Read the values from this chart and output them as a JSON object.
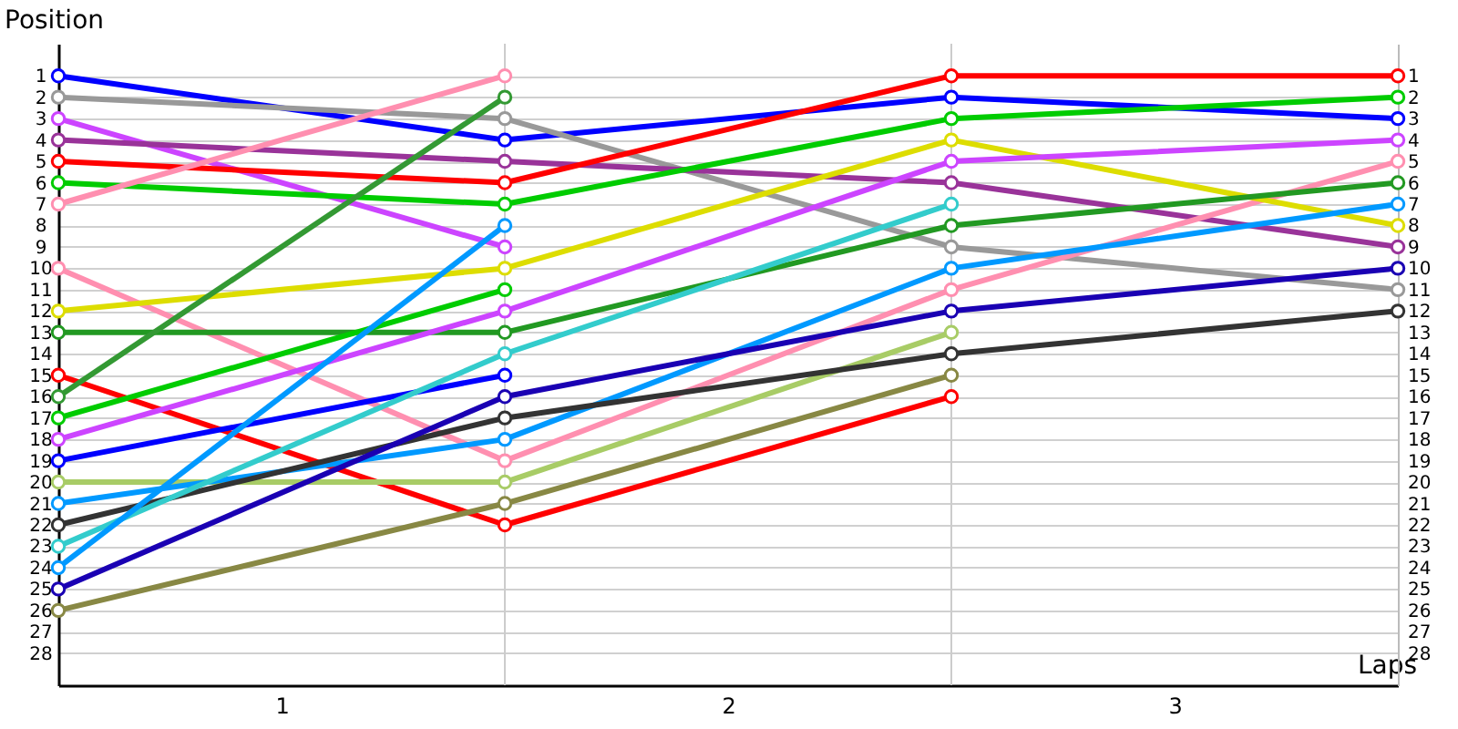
{
  "chart_data": {
    "type": "line",
    "xlabel": "Laps",
    "ylabel": "Position",
    "x": [
      0,
      1,
      2,
      3
    ],
    "xlim": [
      0,
      3
    ],
    "xticks": [
      {
        "value": 0.5,
        "label": "1"
      },
      {
        "value": 1.5,
        "label": "2"
      },
      {
        "value": 2.5,
        "label": "3"
      }
    ],
    "ylim": [
      29.5,
      -0.5
    ],
    "yticks": [
      1,
      2,
      3,
      4,
      5,
      6,
      7,
      8,
      9,
      10,
      11,
      12,
      13,
      14,
      15,
      16,
      17,
      18,
      19,
      20,
      21,
      22,
      23,
      24,
      25,
      26,
      27,
      28
    ],
    "y2lim": [
      29.5,
      -0.5
    ],
    "y2ticks": [
      1,
      2,
      3,
      4,
      5,
      6,
      7,
      8,
      9,
      10,
      11,
      12,
      13,
      14,
      15,
      16,
      17,
      18,
      19,
      20,
      21,
      22,
      23,
      24,
      25,
      26,
      27,
      28
    ],
    "grid": "y",
    "marker": "circle",
    "legend": false,
    "ref_lines": [
      {
        "axis": "x",
        "value": 1,
        "color": "#cccccc"
      },
      {
        "axis": "x",
        "value": 2,
        "color": "#cccccc"
      }
    ],
    "series": [
      {
        "color": "#0000ff",
        "values": [
          1,
          4,
          2,
          3
        ]
      },
      {
        "color": "#999999",
        "values": [
          2,
          3,
          9,
          11
        ]
      },
      {
        "color": "#cc44ff",
        "values": [
          3,
          9,
          null,
          null
        ]
      },
      {
        "color": "#993399",
        "values": [
          4,
          5,
          6,
          9
        ]
      },
      {
        "color": "#ff0000",
        "values": [
          5,
          6,
          1,
          1
        ]
      },
      {
        "color": "#00cc00",
        "values": [
          6,
          7,
          3,
          2
        ]
      },
      {
        "color": "#ff8fb0",
        "values": [
          7,
          1,
          null,
          null
        ]
      },
      {
        "color": "#ff8fb0",
        "values": [
          10,
          19,
          11,
          5
        ]
      },
      {
        "color": "#dddd00",
        "values": [
          12,
          10,
          4,
          8
        ]
      },
      {
        "color": "#229922",
        "values": [
          13,
          13,
          8,
          6
        ]
      },
      {
        "color": "#ff0000",
        "values": [
          15,
          22,
          16,
          null
        ]
      },
      {
        "color": "#339933",
        "values": [
          16,
          2,
          null,
          null
        ]
      },
      {
        "color": "#00cc00",
        "values": [
          17,
          11,
          null,
          null
        ]
      },
      {
        "color": "#cc44ff",
        "values": [
          18,
          12,
          5,
          4
        ]
      },
      {
        "color": "#0000ff",
        "values": [
          19,
          15,
          null,
          null
        ]
      },
      {
        "color": "#a8cc66",
        "values": [
          20,
          20,
          13,
          null
        ]
      },
      {
        "color": "#0099ff",
        "values": [
          21,
          18,
          10,
          7
        ]
      },
      {
        "color": "#333333",
        "values": [
          22,
          17,
          14,
          12
        ]
      },
      {
        "color": "#33cccc",
        "values": [
          23,
          14,
          7,
          null
        ]
      },
      {
        "color": "#0099ff",
        "values": [
          24,
          8,
          null,
          null
        ]
      },
      {
        "color": "#1a00b3",
        "values": [
          25,
          16,
          12,
          10
        ]
      },
      {
        "color": "#888844",
        "values": [
          26,
          21,
          15,
          null
        ]
      }
    ]
  }
}
